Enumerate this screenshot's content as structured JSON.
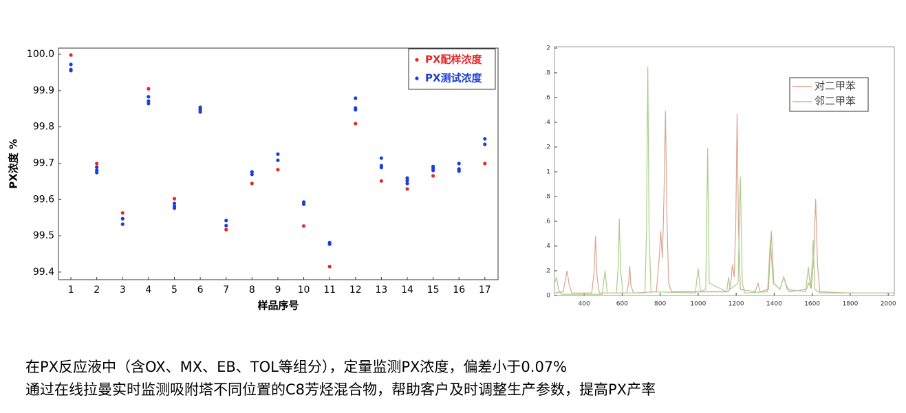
{
  "chart_data": [
    {
      "type": "scatter",
      "ylabel": "PX浓度 %",
      "xlabel": "样品序号",
      "xlim": [
        0.52,
        17.51
      ],
      "ylim": [
        99.379,
        100.017
      ],
      "xticks": [
        1,
        2,
        3,
        4,
        5,
        6,
        7,
        8,
        9,
        10,
        11,
        12,
        13,
        14,
        15,
        16,
        17
      ],
      "yticks": [
        {
          "value": 99.4,
          "label": "99.4"
        },
        99.5,
        99.6,
        99.7,
        99.8,
        99.9,
        {
          "value": 100,
          "label": "100.0"
        }
      ],
      "legend": "upper right",
      "series": [
        {
          "name": "PX配样浓度",
          "color": "#e8262a",
          "x": [
            1,
            2,
            3,
            4,
            5,
            6,
            7,
            8,
            9,
            10,
            11,
            12,
            13,
            14,
            15,
            16,
            17
          ],
          "values": [
            99.998,
            99.699,
            99.563,
            99.905,
            99.602,
            99.85,
            99.517,
            99.644,
            99.682,
            99.527,
            99.415,
            99.809,
            99.651,
            99.629,
            99.665,
            99.68,
            99.699
          ]
        },
        {
          "name": "PX测试浓度",
          "color": "#1a3fd6",
          "x": [
            1,
            1,
            1,
            2,
            2,
            2,
            3,
            3,
            4,
            4,
            4,
            5,
            5,
            5,
            6,
            6,
            6,
            7,
            7,
            8,
            8,
            9,
            9,
            10,
            10,
            11,
            11,
            12,
            12,
            12,
            13,
            13,
            13,
            14,
            14,
            14,
            15,
            15,
            15,
            16,
            16,
            16,
            17,
            17
          ],
          "values": [
            99.972,
            99.958,
            99.955,
            99.689,
            99.68,
            99.674,
            99.547,
            99.532,
            99.883,
            99.871,
            99.864,
            99.589,
            99.581,
            99.576,
            99.854,
            99.847,
            99.841,
            99.542,
            99.528,
            99.676,
            99.669,
            99.725,
            99.708,
            99.593,
            99.587,
            99.481,
            99.477,
            99.879,
            99.852,
            99.847,
            99.714,
            99.693,
            99.688,
            99.659,
            99.652,
            99.644,
            99.691,
            99.686,
            99.68,
            99.699,
            99.684,
            99.678,
            99.767,
            99.752
          ]
        }
      ]
    },
    {
      "type": "line",
      "xlim": [
        244,
        2032
      ],
      "ylim": [
        0,
        2.011
      ],
      "xticks": [
        400,
        600,
        800,
        1000,
        1200,
        1400,
        1600,
        1800,
        2000
      ],
      "yticks": [
        0,
        {
          "value": 0.2,
          "label": ".2"
        },
        {
          "value": 0.4,
          "label": ".4"
        },
        {
          "value": 0.6,
          "label": ".6"
        },
        {
          "value": 0.8,
          "label": ".8"
        },
        1,
        {
          "value": 1.2,
          "label": ".2"
        },
        {
          "value": 1.4,
          "label": ".4"
        },
        {
          "value": 1.6,
          "label": ".6"
        },
        {
          "value": 1.8,
          "label": ".8"
        },
        2
      ],
      "legend": "upper right",
      "series": [
        {
          "name": "对二甲苯",
          "color": "#d9a48e",
          "x": [
            245,
            290,
            300,
            310,
            320,
            335,
            440,
            452,
            460,
            468,
            480,
            625,
            634,
            640,
            646,
            660,
            780,
            795,
            803,
            812,
            820,
            828,
            836,
            845,
            860,
            1160,
            1172,
            1180,
            1190,
            1198,
            1205,
            1212,
            1222,
            1300,
            1315,
            1325,
            1370,
            1385,
            1398,
            1430,
            1450,
            1465,
            1480,
            1570,
            1580,
            1595,
            1608,
            1618,
            1628,
            1640,
            1800,
            2030
          ],
          "values": [
            0.02,
            0.03,
            0.12,
            0.2,
            0.1,
            0.02,
            0.02,
            0.18,
            0.48,
            0.15,
            0.02,
            0.02,
            0.1,
            0.24,
            0.08,
            0.02,
            0.03,
            0.3,
            0.52,
            0.3,
            0.8,
            1.49,
            0.6,
            0.1,
            0.03,
            0.03,
            0.1,
            0.25,
            0.15,
            0.6,
            1.47,
            0.55,
            0.05,
            0.03,
            0.1,
            0.03,
            0.05,
            0.52,
            0.1,
            0.05,
            0.15,
            0.08,
            0.03,
            0.05,
            0.1,
            0.06,
            0.3,
            0.78,
            0.25,
            0.03,
            0.02,
            0.02
          ]
        },
        {
          "name": "邻二甲苯",
          "color": "#a6cf88",
          "x": [
            245,
            255,
            265,
            280,
            495,
            510,
            522,
            570,
            580,
            585,
            592,
            605,
            720,
            728,
            735,
            742,
            752,
            985,
            1000,
            1012,
            1040,
            1050,
            1058,
            1150,
            1160,
            1168,
            1210,
            1222,
            1232,
            1245,
            1365,
            1380,
            1395,
            1430,
            1450,
            1468,
            1565,
            1580,
            1590,
            1598,
            1605,
            1614,
            1640,
            2030
          ],
          "values": [
            0.1,
            0.15,
            0.05,
            0.01,
            0.01,
            0.2,
            0.02,
            0.02,
            0.25,
            0.62,
            0.2,
            0.02,
            0.02,
            0.5,
            1.85,
            0.5,
            0.03,
            0.02,
            0.22,
            0.03,
            0.05,
            1.19,
            0.1,
            0.03,
            0.15,
            0.05,
            0.1,
            0.96,
            0.1,
            0.02,
            0.03,
            0.45,
            0.1,
            0.05,
            0.15,
            0.05,
            0.03,
            0.23,
            0.06,
            0.2,
            0.45,
            0.05,
            0.02,
            0.02
          ]
        }
      ]
    }
  ],
  "caption": [
    "在PX反应液中（含OX、MX、EB、TOL等组分），定量监测PX浓度，偏差小于0.07%",
    "通过在线拉曼实时监测吸附塔不同位置的C8芳烃混合物，帮助客户及时调整生产参数，提高PX产率"
  ]
}
